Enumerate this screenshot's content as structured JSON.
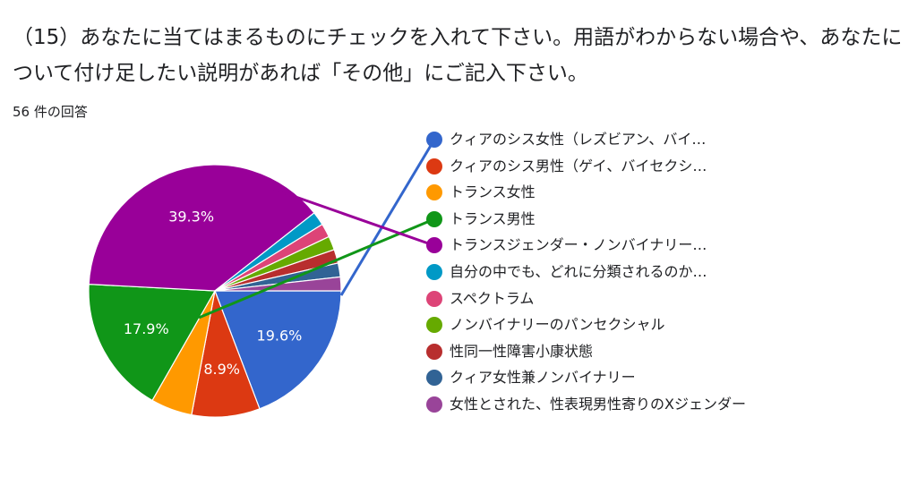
{
  "question": {
    "title": "（15）あなたに当てはまるものにチェックを入れて下さい。用語がわからない場合や、あなたについて付け足したい説明があれば「その他」にご記入下さい。",
    "response_count": "56 件の回答"
  },
  "chart_data": {
    "type": "pie",
    "title": "",
    "legend_position": "right",
    "slices": [
      {
        "label": "クィアのシス女性（レズビアン、バイ…",
        "value": 19.6,
        "percent_label": "19.6%",
        "color": "#3366cc"
      },
      {
        "label": "クィアのシス男性（ゲイ、バイセクシ…",
        "value": 8.9,
        "percent_label": "8.9%",
        "color": "#dc3912"
      },
      {
        "label": "トランス女性",
        "value": 5.4,
        "percent_label": "",
        "color": "#ff9900"
      },
      {
        "label": "トランス男性",
        "value": 17.9,
        "percent_label": "17.9%",
        "color": "#109618"
      },
      {
        "label": "トランスジェンダー・ノンバイナリー…",
        "value": 39.3,
        "percent_label": "39.3%",
        "color": "#990099"
      },
      {
        "label": "自分の中でも、どれに分類されるのか…",
        "value": 1.8,
        "percent_label": "",
        "color": "#0099c6"
      },
      {
        "label": "スペクトラム",
        "value": 1.8,
        "percent_label": "",
        "color": "#dd4477"
      },
      {
        "label": "ノンバイナリーのパンセクシャル",
        "value": 1.8,
        "percent_label": "",
        "color": "#66aa00"
      },
      {
        "label": "性同一性障害小康状態",
        "value": 1.8,
        "percent_label": "",
        "color": "#b82e2e"
      },
      {
        "label": "クィア女性兼ノンバイナリー",
        "value": 1.8,
        "percent_label": "",
        "color": "#316395"
      },
      {
        "label": "女性とされた、性表現男性寄りのXジェンダー",
        "value": 1.8,
        "percent_label": "",
        "color": "#994499"
      }
    ]
  }
}
